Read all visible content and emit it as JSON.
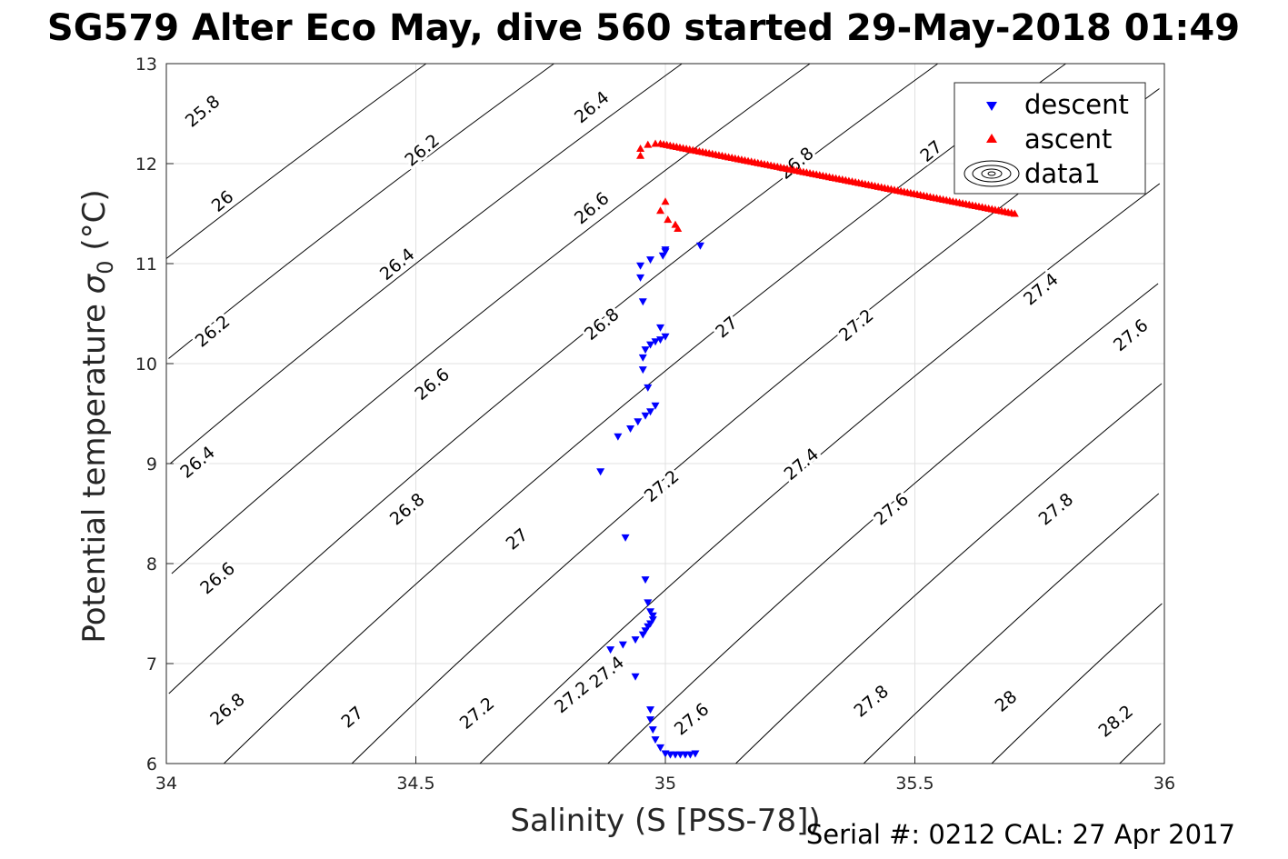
{
  "chart_data": {
    "type": "scatter",
    "title": "SG579 Alter Eco May, dive 560 started 29-May-2018 01:49",
    "xlabel": "Salinity (S [PSS-78])",
    "ylabel": "Potential temperature σ (°C)",
    "ylabel_prefix": "Potential temperature ",
    "ylabel_sigma": "σ",
    "ylabel_sub": "0",
    "ylabel_suffix": " (°C)",
    "xlim": [
      34,
      36
    ],
    "ylim": [
      6,
      13
    ],
    "xticks": [
      "34",
      "34.5",
      "35",
      "35.5",
      "36"
    ],
    "yticks": [
      "6",
      "7",
      "8",
      "9",
      "10",
      "11",
      "12",
      "13"
    ],
    "grid": true,
    "legend_position": "top-right",
    "legend": [
      "descent",
      "ascent",
      "data1"
    ],
    "footer": "Serial #: 0212  CAL: 27 Apr 2017",
    "colors": {
      "descent": "#0000ff",
      "ascent": "#ff0000",
      "contour": "#000000",
      "grid": "#e0e0e0"
    },
    "series": [
      {
        "name": "descent",
        "marker": "triangle-down",
        "points": [
          [
            35.07,
            11.18
          ],
          [
            35.0,
            11.14
          ],
          [
            35.0,
            11.12
          ],
          [
            34.995,
            11.08
          ],
          [
            34.97,
            11.04
          ],
          [
            34.95,
            10.98
          ],
          [
            34.95,
            10.86
          ],
          [
            34.955,
            10.62
          ],
          [
            34.99,
            10.36
          ],
          [
            35.0,
            10.27
          ],
          [
            34.99,
            10.24
          ],
          [
            34.98,
            10.22
          ],
          [
            34.97,
            10.19
          ],
          [
            34.96,
            10.14
          ],
          [
            34.955,
            10.06
          ],
          [
            34.955,
            9.94
          ],
          [
            34.965,
            9.76
          ],
          [
            34.98,
            9.58
          ],
          [
            34.97,
            9.52
          ],
          [
            34.96,
            9.48
          ],
          [
            34.945,
            9.42
          ],
          [
            34.93,
            9.35
          ],
          [
            34.905,
            9.27
          ],
          [
            34.87,
            8.92
          ],
          [
            34.92,
            8.26
          ],
          [
            34.96,
            7.84
          ],
          [
            34.965,
            7.61
          ],
          [
            34.97,
            7.52
          ],
          [
            34.975,
            7.48
          ],
          [
            34.975,
            7.44
          ],
          [
            34.97,
            7.4
          ],
          [
            34.965,
            7.37
          ],
          [
            34.96,
            7.33
          ],
          [
            34.955,
            7.29
          ],
          [
            34.94,
            7.24
          ],
          [
            34.915,
            7.19
          ],
          [
            34.89,
            7.14
          ],
          [
            34.94,
            6.87
          ],
          [
            34.97,
            6.54
          ],
          [
            34.97,
            6.44
          ],
          [
            34.975,
            6.34
          ],
          [
            34.98,
            6.24
          ],
          [
            34.99,
            6.16
          ],
          [
            35.0,
            6.1
          ],
          [
            35.01,
            6.09
          ],
          [
            35.02,
            6.09
          ],
          [
            35.03,
            6.09
          ],
          [
            35.04,
            6.09
          ],
          [
            35.05,
            6.09
          ],
          [
            35.06,
            6.1
          ]
        ]
      },
      {
        "name": "ascent",
        "marker": "triangle-up",
        "points_start": [
          [
            34.95,
            12.15
          ],
          [
            34.95,
            12.08
          ],
          [
            34.965,
            12.19
          ],
          [
            34.98,
            12.2
          ],
          [
            35.0,
            11.62
          ],
          [
            34.99,
            11.53
          ],
          [
            35.005,
            11.44
          ],
          [
            35.02,
            11.39
          ],
          [
            35.025,
            11.35
          ]
        ],
        "line_from": [
          34.99,
          12.2
        ],
        "line_to": [
          35.7,
          11.5
        ],
        "line_count": 110
      }
    ],
    "contour_levels": [
      "25.8",
      "26",
      "26.2",
      "26.4",
      "26.6",
      "26.8",
      "27",
      "27.2",
      "27.4",
      "27.6",
      "27.8",
      "28",
      "28.2"
    ],
    "contour_labels": [
      [
        "25.8",
        34.08,
        12.48
      ],
      [
        "26",
        34.12,
        11.58
      ],
      [
        "26.2",
        34.1,
        10.28
      ],
      [
        "26.4",
        34.07,
        8.97
      ],
      [
        "26.6",
        34.11,
        7.81
      ],
      [
        "26.8",
        34.13,
        6.5
      ],
      [
        "27",
        34.38,
        6.42
      ],
      [
        "27.2",
        34.63,
        6.46
      ],
      [
        "26.2",
        34.52,
        12.09
      ],
      [
        "26.4",
        34.47,
        10.95
      ],
      [
        "26.6",
        34.54,
        9.75
      ],
      [
        "26.8",
        34.49,
        8.5
      ],
      [
        "27",
        34.71,
        8.2
      ],
      [
        "27.2",
        34.82,
        6.62
      ],
      [
        "26.4",
        34.86,
        12.52
      ],
      [
        "26.6",
        34.86,
        11.51
      ],
      [
        "26.8",
        34.88,
        10.35
      ],
      [
        "27.2",
        35.0,
        8.73
      ],
      [
        "27.4",
        34.89,
        6.87
      ],
      [
        "27.6",
        35.06,
        6.4
      ],
      [
        "26.8",
        35.27,
        11.96
      ],
      [
        "27",
        35.13,
        10.32
      ],
      [
        "27.2",
        35.39,
        10.34
      ],
      [
        "27.4",
        35.28,
        8.95
      ],
      [
        "27.6",
        35.46,
        8.5
      ],
      [
        "27.8",
        35.42,
        6.58
      ],
      [
        "28",
        35.69,
        6.58
      ],
      [
        "28.2",
        35.91,
        6.38
      ],
      [
        "27",
        35.54,
        12.08
      ],
      [
        "27.4",
        35.76,
        10.7
      ],
      [
        "27.6",
        35.94,
        10.24
      ],
      [
        "27.8",
        35.79,
        8.5
      ]
    ]
  }
}
